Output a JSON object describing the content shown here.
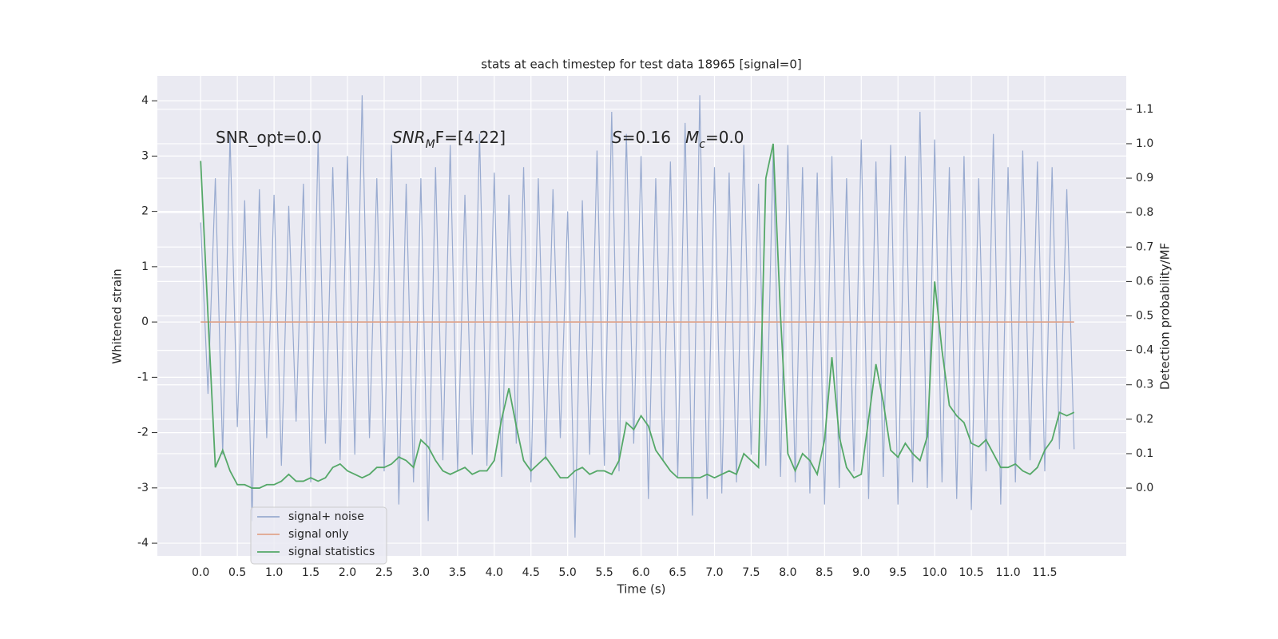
{
  "chart_data": {
    "type": "line",
    "title": "stats at each timestep for test data 18965 [signal=0]",
    "xlabel": "Time (s)",
    "ylabel": "Whitened strain",
    "y2label": "Detection probability/MF",
    "x": [
      0.0,
      0.1,
      0.2,
      0.3,
      0.4,
      0.5,
      0.6,
      0.7,
      0.8,
      0.9,
      1.0,
      1.1,
      1.2,
      1.3,
      1.4,
      1.5,
      1.6,
      1.7,
      1.8,
      1.9,
      2.0,
      2.1,
      2.2,
      2.3,
      2.4,
      2.5,
      2.6,
      2.7,
      2.8,
      2.9,
      3.0,
      3.1,
      3.2,
      3.3,
      3.4,
      3.5,
      3.6,
      3.7,
      3.8,
      3.9,
      4.0,
      4.1,
      4.2,
      4.3,
      4.4,
      4.5,
      4.6,
      4.7,
      4.8,
      4.9,
      5.0,
      5.1,
      5.2,
      5.3,
      5.4,
      5.5,
      5.6,
      5.7,
      5.8,
      5.9,
      6.0,
      6.1,
      6.2,
      6.3,
      6.4,
      6.5,
      6.6,
      6.7,
      6.8,
      6.9,
      7.0,
      7.1,
      7.2,
      7.3,
      7.4,
      7.5,
      7.6,
      7.7,
      7.8,
      7.9,
      8.0,
      8.1,
      8.2,
      8.3,
      8.4,
      8.5,
      8.6,
      8.7,
      8.8,
      8.9,
      9.0,
      9.1,
      9.2,
      9.3,
      9.4,
      9.5,
      9.6,
      9.7,
      9.8,
      9.9,
      10.0,
      10.1,
      10.2,
      10.3,
      10.4,
      10.5,
      10.6,
      10.7,
      10.8,
      10.9,
      11.0,
      11.1,
      11.2,
      11.3,
      11.4,
      11.5,
      11.6,
      11.7,
      11.8,
      11.9
    ],
    "series": [
      {
        "name": "signal+ noise",
        "color": "#99abd0",
        "values": [
          1.8,
          -1.3,
          2.6,
          -2.4,
          3.4,
          -1.9,
          2.2,
          -3.6,
          2.4,
          -2.1,
          2.3,
          -2.6,
          2.1,
          -1.8,
          2.5,
          -2.9,
          3.3,
          -2.2,
          2.8,
          -2.5,
          3.0,
          -2.4,
          4.1,
          -2.1,
          2.6,
          -2.7,
          3.2,
          -3.3,
          2.5,
          -2.9,
          2.6,
          -3.6,
          2.8,
          -2.5,
          3.2,
          -2.7,
          2.3,
          -2.4,
          3.4,
          -2.6,
          2.7,
          -2.8,
          2.3,
          -2.2,
          2.8,
          -2.9,
          2.6,
          -2.5,
          2.4,
          -2.1,
          2.0,
          -3.9,
          2.2,
          -2.4,
          3.1,
          -2.6,
          3.8,
          -2.7,
          3.4,
          -2.2,
          3.0,
          -3.2,
          2.6,
          -2.5,
          2.9,
          -2.8,
          3.6,
          -3.5,
          4.1,
          -3.2,
          2.8,
          -3.1,
          2.7,
          -2.9,
          3.2,
          -2.4,
          2.5,
          -2.6,
          3.1,
          -2.8,
          3.2,
          -2.9,
          2.8,
          -3.1,
          2.7,
          -3.3,
          3.0,
          -3.0,
          2.6,
          -2.7,
          3.3,
          -3.2,
          2.9,
          -2.8,
          3.2,
          -3.3,
          3.0,
          -2.9,
          3.8,
          -3.0,
          3.3,
          -2.9,
          2.8,
          -3.2,
          3.0,
          -3.4,
          2.6,
          -2.7,
          3.4,
          -3.3,
          2.8,
          -2.9,
          3.1,
          -2.5,
          2.9,
          -2.7,
          2.8,
          -2.3,
          2.4,
          -2.3
        ]
      },
      {
        "name": "signal only",
        "color": "#e0a58c",
        "values": [
          0,
          0,
          0,
          0,
          0,
          0,
          0,
          0,
          0,
          0,
          0,
          0,
          0,
          0,
          0,
          0,
          0,
          0,
          0,
          0,
          0,
          0,
          0,
          0,
          0,
          0,
          0,
          0,
          0,
          0,
          0,
          0,
          0,
          0,
          0,
          0,
          0,
          0,
          0,
          0,
          0,
          0,
          0,
          0,
          0,
          0,
          0,
          0,
          0,
          0,
          0,
          0,
          0,
          0,
          0,
          0,
          0,
          0,
          0,
          0,
          0,
          0,
          0,
          0,
          0,
          0,
          0,
          0,
          0,
          0,
          0,
          0,
          0,
          0,
          0,
          0,
          0,
          0,
          0,
          0,
          0,
          0,
          0,
          0,
          0,
          0,
          0,
          0,
          0,
          0,
          0,
          0,
          0,
          0,
          0,
          0,
          0,
          0,
          0,
          0,
          0,
          0,
          0,
          0,
          0,
          0,
          0,
          0,
          0,
          0,
          0,
          0,
          0,
          0,
          0,
          0,
          0,
          0,
          0,
          0
        ]
      },
      {
        "name": "signal statistics",
        "color": "#55a868",
        "axis": "y2",
        "values": [
          0.95,
          0.5,
          0.06,
          0.11,
          0.05,
          0.01,
          0.01,
          0.0,
          0.0,
          0.01,
          0.01,
          0.02,
          0.04,
          0.02,
          0.02,
          0.03,
          0.02,
          0.03,
          0.06,
          0.07,
          0.05,
          0.04,
          0.03,
          0.04,
          0.06,
          0.06,
          0.07,
          0.09,
          0.08,
          0.06,
          0.14,
          0.12,
          0.08,
          0.05,
          0.04,
          0.05,
          0.06,
          0.04,
          0.05,
          0.05,
          0.08,
          0.2,
          0.29,
          0.18,
          0.08,
          0.05,
          0.07,
          0.09,
          0.06,
          0.03,
          0.03,
          0.05,
          0.06,
          0.04,
          0.05,
          0.05,
          0.04,
          0.08,
          0.19,
          0.17,
          0.21,
          0.18,
          0.11,
          0.08,
          0.05,
          0.03,
          0.03,
          0.03,
          0.03,
          0.04,
          0.03,
          0.04,
          0.05,
          0.04,
          0.1,
          0.08,
          0.06,
          0.9,
          1.0,
          0.5,
          0.1,
          0.05,
          0.1,
          0.08,
          0.04,
          0.14,
          0.38,
          0.15,
          0.06,
          0.03,
          0.04,
          0.2,
          0.36,
          0.25,
          0.11,
          0.09,
          0.13,
          0.1,
          0.08,
          0.15,
          0.6,
          0.4,
          0.24,
          0.21,
          0.19,
          0.13,
          0.12,
          0.14,
          0.1,
          0.06,
          0.06,
          0.07,
          0.05,
          0.04,
          0.06,
          0.11,
          0.14,
          0.22,
          0.21,
          0.22
        ]
      }
    ],
    "xlim": [
      -0.59,
      12.61
    ],
    "ylim": [
      -4.23,
      4.45
    ],
    "y2lim": [
      -0.197,
      1.197
    ],
    "xticks": [
      {
        "value": 0,
        "label": "0.0"
      },
      0.5,
      {
        "value": 1,
        "label": "1.0"
      },
      1.5,
      {
        "value": 2,
        "label": "2.0"
      },
      2.5,
      {
        "value": 3,
        "label": "3.0"
      },
      3.5,
      {
        "value": 4,
        "label": "4.0"
      },
      4.5,
      {
        "value": 5,
        "label": "5.0"
      },
      5.5,
      {
        "value": 6,
        "label": "6.0"
      },
      6.5,
      {
        "value": 7,
        "label": "7.0"
      },
      7.5,
      {
        "value": 8,
        "label": "8.0"
      },
      8.5,
      {
        "value": 9,
        "label": "9.0"
      },
      9.5,
      {
        "value": 10,
        "label": "10.0"
      },
      10.5,
      {
        "value": 11,
        "label": "11.0"
      },
      11.5
    ],
    "yticks": [
      -4,
      -3,
      -2,
      -1,
      0,
      1,
      2,
      3,
      4
    ],
    "y2ticks": [
      {
        "value": 0,
        "label": "0.0"
      },
      0.1,
      0.2,
      0.3,
      0.4,
      0.5,
      0.6,
      0.7,
      0.8,
      0.9,
      {
        "value": 1,
        "label": "1.0"
      },
      1.1
    ],
    "grid": true,
    "legend": "lower left",
    "annotations": [
      {
        "parts": [
          {
            "text": "SNR_opt=0.0"
          }
        ]
      },
      {
        "parts": [
          {
            "text": "SNR",
            "italic": true
          },
          {
            "text": "M",
            "italic": true,
            "sub": true
          },
          {
            "text": "F=[4.22]"
          }
        ]
      },
      {
        "parts": [
          {
            "text": "S",
            "italic": true
          },
          {
            "text": "=0.16"
          }
        ]
      },
      {
        "parts": [
          {
            "text": "M",
            "italic": true
          },
          {
            "text": "c",
            "italic": true,
            "sub": true
          },
          {
            "text": "=0.0"
          }
        ]
      }
    ]
  }
}
